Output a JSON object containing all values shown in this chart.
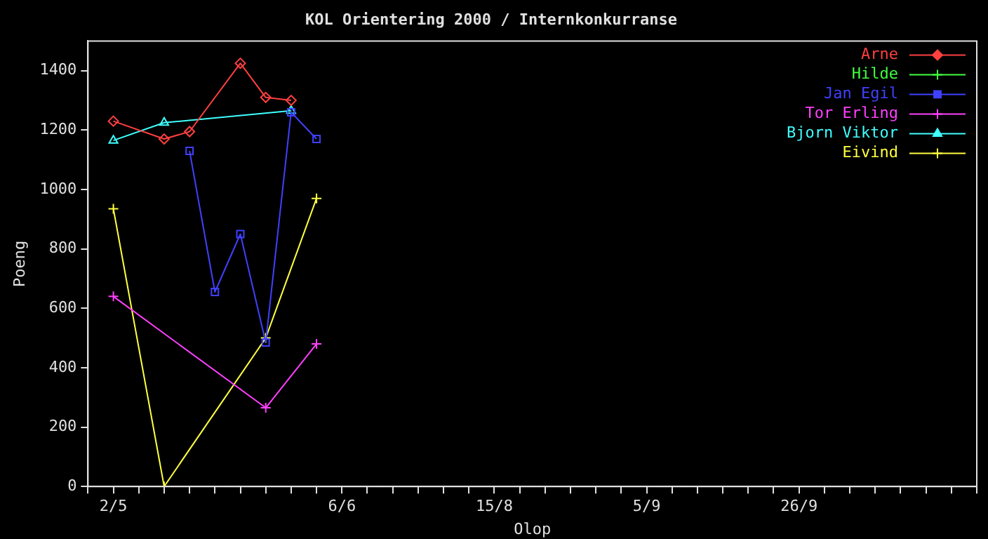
{
  "chart_data": {
    "type": "line",
    "title": "KOL Orientering 2000 / Internkonkurranse",
    "xlabel": "Olop",
    "ylabel": "Poeng",
    "categories": [
      null,
      "2/5",
      null,
      null,
      null,
      null,
      null,
      null,
      null,
      null,
      "6/6",
      null,
      null,
      null,
      null,
      null,
      "15/8",
      null,
      null,
      null,
      null,
      null,
      "5/9",
      null,
      null,
      null,
      null,
      null,
      "26/9",
      null,
      null,
      null,
      null,
      null,
      null,
      null
    ],
    "ylim": [
      0,
      1500
    ],
    "yticks": [
      0,
      200,
      400,
      600,
      800,
      1000,
      1200,
      1400
    ],
    "grid": false,
    "legend": "top right",
    "line_style": "solid",
    "series": [
      {
        "name": "Arne",
        "color": "#ff4040",
        "marker": "diamond",
        "values": [
          null,
          1230,
          null,
          1170,
          1195,
          null,
          1425,
          1310,
          1300,
          null,
          null,
          null,
          null,
          null,
          null,
          null,
          null,
          null,
          null,
          null,
          null,
          null,
          null,
          null,
          null,
          null,
          null,
          null,
          null,
          null,
          null,
          null,
          null,
          null,
          null,
          null
        ]
      },
      {
        "name": "Hilde",
        "color": "#40ff40",
        "marker": "cross",
        "values": [
          null,
          null,
          null,
          null,
          null,
          null,
          null,
          null,
          null,
          null,
          null,
          null,
          null,
          null,
          null,
          null,
          null,
          null,
          null,
          null,
          null,
          null,
          null,
          null,
          null,
          null,
          null,
          null,
          null,
          null,
          null,
          null,
          null,
          null,
          null,
          null
        ]
      },
      {
        "name": "Jan Egil",
        "color": "#4040ff",
        "marker": "square",
        "values": [
          null,
          null,
          null,
          null,
          1130,
          655,
          850,
          485,
          1260,
          1170,
          null,
          null,
          null,
          null,
          null,
          null,
          null,
          null,
          null,
          null,
          null,
          null,
          null,
          null,
          null,
          null,
          null,
          null,
          null,
          null,
          null,
          null,
          null,
          null,
          null,
          null
        ]
      },
      {
        "name": "Tor Erling",
        "color": "#ff40ff",
        "marker": "cross",
        "values": [
          null,
          640,
          null,
          null,
          null,
          null,
          null,
          265,
          null,
          480,
          null,
          null,
          null,
          null,
          null,
          null,
          null,
          null,
          null,
          null,
          null,
          null,
          null,
          null,
          null,
          null,
          null,
          null,
          null,
          null,
          null,
          null,
          null,
          null,
          null,
          null
        ]
      },
      {
        "name": "Bjorn Viktor",
        "color": "#40ffff",
        "marker": "triangle",
        "values": [
          null,
          1165,
          null,
          1225,
          null,
          null,
          null,
          null,
          1265,
          null,
          null,
          null,
          null,
          null,
          null,
          null,
          null,
          null,
          null,
          null,
          null,
          null,
          null,
          null,
          null,
          null,
          null,
          null,
          null,
          null,
          null,
          null,
          null,
          null,
          null,
          null
        ]
      },
      {
        "name": "Eivind",
        "color": "#ffff40",
        "marker": "cross",
        "values": [
          null,
          935,
          null,
          0,
          null,
          null,
          null,
          500,
          null,
          970,
          null,
          null,
          null,
          null,
          null,
          null,
          null,
          null,
          null,
          null,
          null,
          null,
          null,
          null,
          null,
          null,
          null,
          null,
          null,
          null,
          null,
          null,
          null,
          null,
          null,
          null
        ]
      }
    ]
  }
}
